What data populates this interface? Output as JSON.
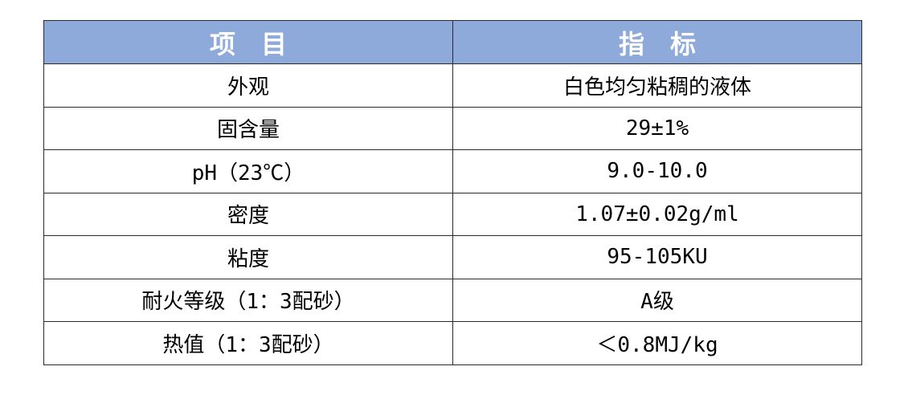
{
  "page": {
    "background_color": "#ffffff"
  },
  "table": {
    "colors": {
      "header_background": "#8EAADB",
      "header_text": "#ffffff",
      "border": "#2b2b2b",
      "body_text": "#000000"
    },
    "header": {
      "item_label": "项　目",
      "indicator_label": "指　标"
    },
    "rows": [
      {
        "item": "外观",
        "indicator": "白色均匀粘稠的液体"
      },
      {
        "item": "固含量",
        "indicator": "29±1%"
      },
      {
        "item": "pH（23℃）",
        "indicator": "9.0-10.0"
      },
      {
        "item": "密度",
        "indicator": "1.07±0.02g/ml"
      },
      {
        "item": "粘度",
        "indicator": "95-105KU"
      },
      {
        "item": "耐火等级（1：3配砂）",
        "indicator": "A级"
      },
      {
        "item": "热值（1：3配砂）",
        "indicator": "＜0.8MJ/kg"
      }
    ]
  }
}
